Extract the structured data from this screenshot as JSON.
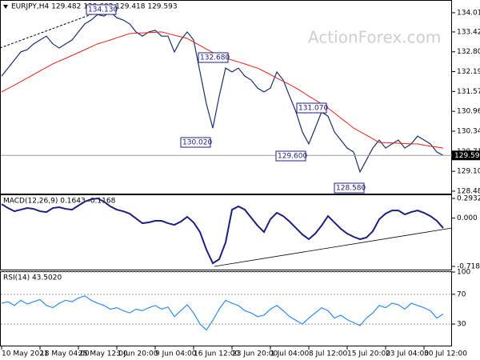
{
  "chart_data": [
    {
      "type": "line",
      "title": "EURJPY,H4 129.482 129.602 129.418 129.593",
      "watermark": "ActionForex.com",
      "categories": [
        "10 May 2021",
        null,
        null,
        null,
        null,
        null,
        "18 May 04:00",
        null,
        null,
        null,
        null,
        null,
        "25 May 12:00",
        null,
        null,
        null,
        null,
        null,
        "1 Jun 20:00",
        null,
        null,
        null,
        null,
        null,
        "9 Jun 04:00",
        null,
        null,
        null,
        null,
        null,
        "16 Jun 12:00",
        null,
        null,
        null,
        null,
        null,
        "23 Jun 20:00",
        null,
        null,
        null,
        null,
        null,
        "1 Jul 04:00",
        null,
        null,
        null,
        null,
        null,
        "8 Jul 12:00",
        null,
        null,
        null,
        null,
        null,
        "15 Jul 20:00",
        null,
        null,
        null,
        null,
        null,
        "23 Jul 04:00",
        null,
        null,
        null,
        null,
        null,
        "30 Jul 12:00",
        null,
        null,
        null
      ],
      "series": [
        {
          "color": "#1b2f6b",
          "values": [
            132.05,
            132.3,
            132.55,
            132.8,
            132.87,
            133.05,
            133.17,
            133.29,
            133.05,
            132.92,
            133.05,
            133.17,
            133.42,
            133.67,
            133.79,
            133.96,
            133.91,
            134.04,
            133.86,
            133.79,
            133.67,
            133.42,
            133.29,
            133.42,
            133.47,
            133.29,
            133.29,
            132.8,
            133.17,
            133.42,
            133.17,
            132.18,
            131.19,
            130.44,
            131.43,
            132.3,
            132.18,
            132.3,
            132.05,
            131.93,
            131.68,
            131.56,
            131.68,
            132.18,
            131.93,
            131.43,
            130.94,
            130.32,
            129.95,
            130.44,
            130.94,
            130.81,
            130.32,
            130.07,
            129.82,
            129.7,
            129.08,
            129.45,
            129.82,
            130.07,
            129.82,
            129.95,
            130.07,
            129.82,
            129.95,
            130.19,
            130.07,
            129.95,
            129.7,
            129.593
          ]
        },
        {
          "color": "#e8201a",
          "values": [
            131.56,
            131.67,
            131.77,
            131.88,
            131.99,
            132.1,
            132.21,
            132.32,
            132.43,
            132.52,
            132.6,
            132.69,
            132.78,
            132.87,
            132.96,
            133.05,
            133.11,
            133.17,
            133.24,
            133.3,
            133.37,
            133.38,
            133.39,
            133.4,
            133.41,
            133.42,
            133.37,
            133.32,
            133.27,
            133.22,
            133.11,
            133.0,
            132.89,
            132.78,
            132.67,
            132.61,
            132.55,
            132.49,
            132.43,
            132.36,
            132.3,
            132.2,
            132.1,
            131.99,
            131.89,
            131.79,
            131.68,
            131.56,
            131.43,
            131.31,
            131.19,
            131.06,
            130.91,
            130.75,
            130.6,
            130.44,
            130.33,
            130.22,
            130.11,
            129.99,
            129.99,
            129.98,
            129.97,
            129.96,
            129.95,
            129.95,
            129.91,
            129.88,
            129.85,
            129.82
          ]
        }
      ],
      "last_price": 129.593,
      "ylim": [
        128.385,
        134.41
      ],
      "yticks": [
        134.015,
        {
          "value": 133.42,
          "label": "133.420"
        },
        132.805,
        {
          "value": 132.19,
          "label": "132.190"
        },
        131.575,
        {
          "value": 130.96,
          "label": "130.960"
        },
        130.345,
        129.715,
        {
          "value": 129.1,
          "label": "129.100"
        },
        128.485
      ],
      "annotations": [
        "134.130",
        "132.680",
        "130.020",
        "131.070",
        "129.600",
        "128.580"
      ]
    },
    {
      "type": "line",
      "title": "MACD(12,26,9) 0.1643 -0.1168",
      "series": [
        {
          "color": "#1b2080",
          "values": [
            0.209,
            0.15,
            0.102,
            0.126,
            0.15,
            0.138,
            0.102,
            0.09,
            0.15,
            0.162,
            0.138,
            0.126,
            0.186,
            0.245,
            0.281,
            0.293,
            0.245,
            0.174,
            0.126,
            0.102,
            0.067,
            -0.005,
            -0.076,
            -0.064,
            -0.04,
            -0.04,
            -0.076,
            -0.1,
            -0.052,
            0.019,
            -0.064,
            -0.207,
            -0.469,
            -0.671,
            -0.612,
            -0.362,
            0.126,
            0.174,
            0.126,
            0.007,
            -0.112,
            -0.207,
            -0.017,
            0.079,
            0.031,
            -0.052,
            -0.148,
            -0.243,
            -0.314,
            -0.231,
            -0.112,
            0.031,
            -0.064,
            -0.159,
            -0.231,
            -0.278,
            -0.314,
            -0.29,
            -0.195,
            -0.017,
            0.067,
            0.114,
            0.114,
            0.055,
            0.09,
            0.114,
            0.079,
            0.031,
            -0.04,
            -0.148
          ]
        }
      ],
      "ylim": [
        -0.778,
        0.353
      ],
      "yticks": [
        0.2932,
        {
          "value": 0,
          "label": "0.000"
        },
        -0.7185
      ]
    },
    {
      "type": "line",
      "title": "RSI(14) 43.5020",
      "series": [
        {
          "color": "#2f8cf0",
          "values": [
            58,
            60,
            55,
            62,
            57,
            60,
            63,
            55,
            52,
            58,
            62,
            60,
            65,
            68,
            62,
            58,
            55,
            50,
            52,
            48,
            45,
            50,
            48,
            52,
            55,
            50,
            53,
            40,
            48,
            56,
            45,
            30,
            22,
            35,
            50,
            62,
            58,
            55,
            48,
            45,
            40,
            42,
            50,
            55,
            48,
            40,
            35,
            30,
            38,
            45,
            52,
            48,
            38,
            42,
            36,
            32,
            28,
            38,
            45,
            55,
            52,
            58,
            56,
            50,
            58,
            55,
            52,
            48,
            38,
            43.502
          ]
        }
      ],
      "ylim": [
        0,
        100
      ],
      "yticks": [
        100,
        70,
        30
      ],
      "grid": true
    }
  ]
}
